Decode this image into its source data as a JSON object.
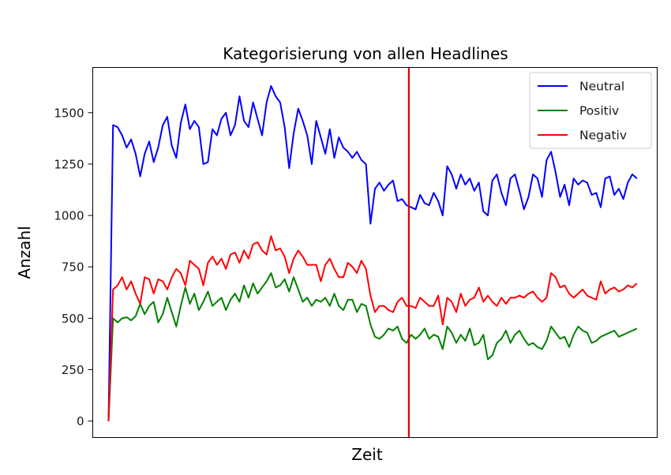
{
  "chart_data": {
    "type": "line",
    "title": "Kategorisierung von allen Headlines",
    "xlabel": "Zeit",
    "ylabel": "Anzahl",
    "x_ticks": "none",
    "ylim": [
      -80,
      1720
    ],
    "xlim": [
      -7,
      243
    ],
    "yticks": [
      0,
      250,
      500,
      750,
      1000,
      1250,
      1500
    ],
    "grid": false,
    "legend": "top-right",
    "vertical_line": {
      "x": 133,
      "color": "#e00000"
    },
    "series": [
      {
        "name": "Neutral",
        "color": "#0000ff",
        "x": [
          0,
          2,
          4,
          6,
          8,
          10,
          12,
          14,
          16,
          18,
          20,
          22,
          24,
          26,
          28,
          30,
          32,
          34,
          36,
          38,
          40,
          42,
          44,
          46,
          48,
          50,
          52,
          54,
          56,
          58,
          60,
          62,
          64,
          66,
          68,
          70,
          72,
          74,
          76,
          78,
          80,
          82,
          84,
          86,
          88,
          90,
          92,
          94,
          96,
          98,
          100,
          102,
          104,
          106,
          108,
          110,
          112,
          114,
          116,
          118,
          120,
          122,
          124,
          126,
          128,
          130,
          132,
          134,
          136,
          138,
          140,
          142,
          144,
          146,
          148,
          150,
          152,
          154,
          156,
          158,
          160,
          162,
          164,
          166,
          168,
          170,
          172,
          174,
          176,
          178,
          180,
          182,
          184,
          186,
          188,
          190,
          192,
          194,
          196,
          198,
          200,
          202,
          204,
          206,
          208,
          210,
          212,
          214,
          216,
          218,
          220,
          222,
          224,
          226,
          228,
          230,
          232,
          234
        ],
        "values": [
          0,
          1440,
          1430,
          1390,
          1330,
          1370,
          1300,
          1190,
          1300,
          1360,
          1260,
          1330,
          1440,
          1480,
          1340,
          1280,
          1450,
          1540,
          1420,
          1460,
          1430,
          1250,
          1260,
          1420,
          1390,
          1470,
          1500,
          1390,
          1440,
          1580,
          1460,
          1430,
          1550,
          1470,
          1390,
          1550,
          1630,
          1580,
          1550,
          1430,
          1230,
          1400,
          1520,
          1460,
          1390,
          1250,
          1460,
          1380,
          1300,
          1420,
          1280,
          1380,
          1330,
          1310,
          1280,
          1310,
          1270,
          1250,
          960,
          1130,
          1160,
          1120,
          1150,
          1170,
          1070,
          1080,
          1050,
          1040,
          1030,
          1100,
          1060,
          1050,
          1110,
          1070,
          1000,
          1240,
          1200,
          1130,
          1200,
          1150,
          1180,
          1120,
          1160,
          1020,
          1000,
          1170,
          1200,
          1110,
          1050,
          1180,
          1200,
          1120,
          1030,
          1090,
          1200,
          1180,
          1090,
          1270,
          1310,
          1210,
          1090,
          1150,
          1050,
          1180,
          1150,
          1170,
          1160,
          1100,
          1110,
          1040,
          1180,
          1190,
          1100,
          1130,
          1080,
          1160,
          1200,
          1180
        ]
      },
      {
        "name": "Positiv",
        "color": "#008000",
        "x": [
          0,
          2,
          4,
          6,
          8,
          10,
          12,
          14,
          16,
          18,
          20,
          22,
          24,
          26,
          28,
          30,
          32,
          34,
          36,
          38,
          40,
          42,
          44,
          46,
          48,
          50,
          52,
          54,
          56,
          58,
          60,
          62,
          64,
          66,
          68,
          70,
          72,
          74,
          76,
          78,
          80,
          82,
          84,
          86,
          88,
          90,
          92,
          94,
          96,
          98,
          100,
          102,
          104,
          106,
          108,
          110,
          112,
          114,
          116,
          118,
          120,
          122,
          124,
          126,
          128,
          130,
          132,
          134,
          136,
          138,
          140,
          142,
          144,
          146,
          148,
          150,
          152,
          154,
          156,
          158,
          160,
          162,
          164,
          166,
          168,
          170,
          172,
          174,
          176,
          178,
          180,
          182,
          184,
          186,
          188,
          190,
          192,
          194,
          196,
          198,
          200,
          202,
          204,
          206,
          208,
          210,
          212,
          214,
          216,
          218,
          220,
          222,
          224,
          226,
          228,
          230,
          232,
          234
        ],
        "values": [
          0,
          500,
          480,
          500,
          505,
          490,
          510,
          570,
          520,
          560,
          580,
          480,
          520,
          600,
          530,
          460,
          560,
          650,
          570,
          620,
          540,
          580,
          630,
          560,
          580,
          600,
          540,
          590,
          620,
          580,
          660,
          600,
          670,
          620,
          650,
          680,
          720,
          650,
          660,
          690,
          630,
          700,
          640,
          580,
          600,
          560,
          590,
          580,
          600,
          560,
          620,
          560,
          540,
          590,
          590,
          530,
          570,
          560,
          470,
          410,
          400,
          420,
          450,
          440,
          460,
          400,
          380,
          420,
          400,
          420,
          450,
          400,
          420,
          410,
          350,
          460,
          430,
          380,
          420,
          390,
          450,
          370,
          380,
          420,
          300,
          320,
          380,
          400,
          440,
          380,
          420,
          440,
          400,
          370,
          380,
          360,
          350,
          390,
          460,
          430,
          400,
          410,
          360,
          420,
          460,
          440,
          430,
          380,
          390,
          410,
          420,
          430,
          440,
          410,
          420,
          430,
          440,
          450
        ]
      },
      {
        "name": "Negativ",
        "color": "#ff0000",
        "x": [
          0,
          2,
          4,
          6,
          8,
          10,
          12,
          14,
          16,
          18,
          20,
          22,
          24,
          26,
          28,
          30,
          32,
          34,
          36,
          38,
          40,
          42,
          44,
          46,
          48,
          50,
          52,
          54,
          56,
          58,
          60,
          62,
          64,
          66,
          68,
          70,
          72,
          74,
          76,
          78,
          80,
          82,
          84,
          86,
          88,
          90,
          92,
          94,
          96,
          98,
          100,
          102,
          104,
          106,
          108,
          110,
          112,
          114,
          116,
          118,
          120,
          122,
          124,
          126,
          128,
          130,
          132,
          134,
          136,
          138,
          140,
          142,
          144,
          146,
          148,
          150,
          152,
          154,
          156,
          158,
          160,
          162,
          164,
          166,
          168,
          170,
          172,
          174,
          176,
          178,
          180,
          182,
          184,
          186,
          188,
          190,
          192,
          194,
          196,
          198,
          200,
          202,
          204,
          206,
          208,
          210,
          212,
          214,
          216,
          218,
          220,
          222,
          224,
          226,
          228,
          230,
          232,
          234
        ],
        "values": [
          0,
          640,
          660,
          700,
          640,
          680,
          620,
          570,
          700,
          690,
          620,
          690,
          680,
          640,
          700,
          740,
          720,
          660,
          780,
          760,
          740,
          660,
          770,
          800,
          760,
          790,
          740,
          810,
          820,
          770,
          830,
          790,
          860,
          870,
          830,
          810,
          900,
          830,
          840,
          800,
          720,
          790,
          830,
          800,
          760,
          760,
          760,
          680,
          760,
          790,
          740,
          700,
          700,
          770,
          750,
          720,
          780,
          740,
          610,
          530,
          560,
          560,
          540,
          530,
          580,
          600,
          560,
          560,
          550,
          600,
          580,
          560,
          560,
          610,
          470,
          600,
          580,
          530,
          620,
          560,
          590,
          600,
          650,
          580,
          610,
          580,
          560,
          600,
          570,
          600,
          600,
          610,
          600,
          620,
          630,
          600,
          580,
          600,
          720,
          700,
          650,
          660,
          620,
          600,
          620,
          640,
          610,
          600,
          590,
          680,
          620,
          640,
          650,
          630,
          640,
          660,
          650,
          670
        ]
      }
    ]
  }
}
